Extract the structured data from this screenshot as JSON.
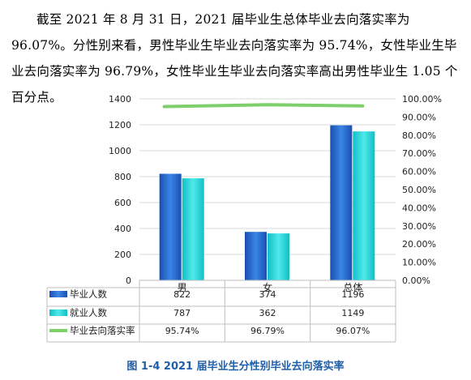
{
  "paragraph": "截至 2021 年 8 月 31 日，2021 届毕业生总体毕业去向落实率为 96.07%。分性别来看，男性毕业生毕业去向落实率为 95.74%，女性毕业生毕业去向落实率为 96.79%，女性毕业生毕业去向落实率高出男性毕业生 1.05 个百分点。",
  "caption": "图 1-4 2021 届毕业生分性别毕业去向落实率",
  "colors": {
    "graduates": "#2e6fd0",
    "employed": "#27d3d8",
    "rate": "#7ccf6a",
    "grid": "#d9d9d9"
  },
  "chart_data": {
    "type": "bar",
    "categories": [
      "男",
      "女",
      "总体"
    ],
    "series": [
      {
        "name": "毕业人数",
        "kind": "bar",
        "axis": "left",
        "values": [
          822,
          374,
          1196
        ],
        "labels": [
          "822",
          "374",
          "1196"
        ]
      },
      {
        "name": "就业人数",
        "kind": "bar",
        "axis": "left",
        "values": [
          787,
          362,
          1149
        ],
        "labels": [
          "787",
          "362",
          "1149"
        ]
      },
      {
        "name": "毕业去向落实率",
        "kind": "line",
        "axis": "right",
        "values": [
          95.74,
          96.79,
          96.07
        ],
        "labels": [
          "95.74%",
          "96.79%",
          "96.07%"
        ]
      }
    ],
    "left_axis": {
      "range": [
        0,
        1400
      ],
      "ticks": [
        "0",
        "200",
        "400",
        "600",
        "800",
        "1000",
        "1200",
        "1400"
      ]
    },
    "right_axis": {
      "range": [
        0,
        100
      ],
      "ticks": [
        "0.00%",
        "10.00%",
        "20.00%",
        "30.00%",
        "40.00%",
        "50.00%",
        "60.00%",
        "70.00%",
        "80.00%",
        "90.00%",
        "100.00%"
      ]
    },
    "grid": true,
    "legend": "data-table"
  }
}
